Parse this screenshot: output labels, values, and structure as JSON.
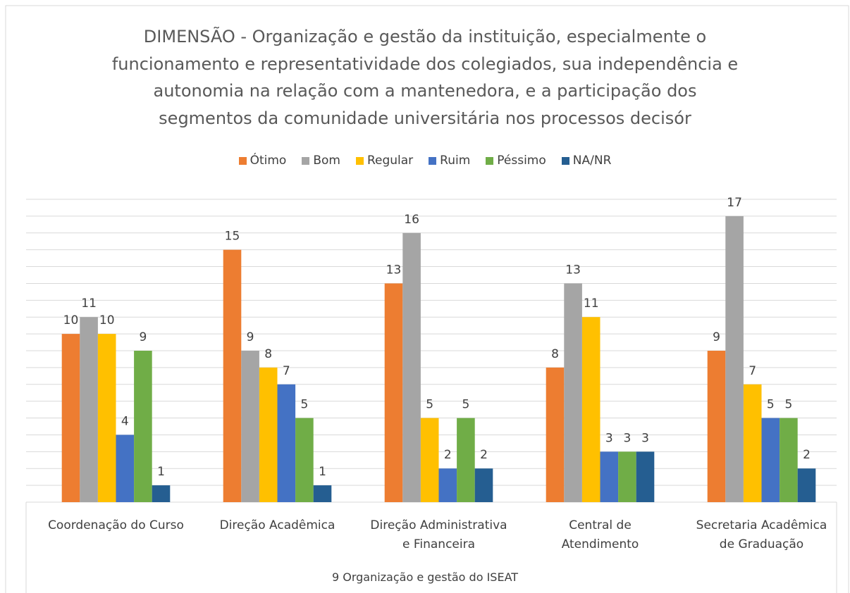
{
  "chart_data": {
    "type": "bar",
    "title": "DIMENSÃO - Organização e gestão da instituição, especialmente o\nfuncionamento e representatividade dos colegiados, sua independência e\nautonomia na relação com a mantenedora, e a participação dos\nsegmentos da comunidade universitária nos processos decisór",
    "x_label": "9 Organização e gestão do ISEAT",
    "categories": [
      "Coordenação do Curso",
      "Direção Acadêmica",
      "Direção Administrativa\ne Financeira",
      "Central de\nAtendimento",
      "Secretaria Acadêmica\nde Graduação"
    ],
    "series": [
      {
        "name": "Ótimo",
        "color": "#ed7d31",
        "values": [
          10,
          15,
          13,
          8,
          9
        ]
      },
      {
        "name": "Bom",
        "color": "#a5a5a5",
        "values": [
          11,
          9,
          16,
          13,
          17
        ]
      },
      {
        "name": "Regular",
        "color": "#ffc000",
        "values": [
          10,
          8,
          5,
          11,
          7
        ]
      },
      {
        "name": "Ruim",
        "color": "#4472c4",
        "values": [
          4,
          7,
          2,
          3,
          5
        ]
      },
      {
        "name": "Péssimo",
        "color": "#70ad47",
        "values": [
          9,
          5,
          5,
          3,
          5
        ]
      },
      {
        "name": "NA/NR",
        "color": "#255e91",
        "values": [
          1,
          1,
          2,
          3,
          2
        ]
      }
    ],
    "ylim": [
      0,
      18
    ],
    "yticks": [
      0,
      1,
      2,
      3,
      4,
      5,
      6,
      7,
      8,
      9,
      10,
      11,
      12,
      13,
      14,
      15,
      16,
      17,
      18
    ],
    "grid": true,
    "legend": "top"
  }
}
